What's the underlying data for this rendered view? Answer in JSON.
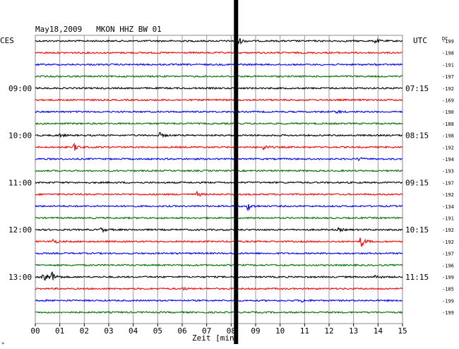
{
  "chart_data": {
    "type": "line",
    "title": "May18,2009   MKON HHZ BW 01",
    "left_axis_label": "CES",
    "right_axis_label": "UTC",
    "corner_label": "DC",
    "xlabel": "Zeit [min]",
    "xlim": [
      0,
      15
    ],
    "x_ticks": [
      "00",
      "01",
      "02",
      "03",
      "04",
      "05",
      "06",
      "07",
      "08",
      "09",
      "10",
      "11",
      "12",
      "13",
      "14",
      "15"
    ],
    "grid": true,
    "left_time_labels": [
      {
        "trace": 4,
        "text": "09:00"
      },
      {
        "trace": 8,
        "text": "10:00"
      },
      {
        "trace": 12,
        "text": "11:00"
      },
      {
        "trace": 16,
        "text": "12:00"
      },
      {
        "trace": 20,
        "text": "13:00"
      }
    ],
    "right_time_labels": [
      {
        "trace": 4,
        "text": "07:15"
      },
      {
        "trace": 8,
        "text": "08:15"
      },
      {
        "trace": 12,
        "text": "09:15"
      },
      {
        "trace": 16,
        "text": "10:15"
      },
      {
        "trace": 20,
        "text": "11:15"
      }
    ],
    "trace_colors": [
      "#000000",
      "#ff0000",
      "#0000ff",
      "#007000"
    ],
    "series": [
      {
        "offset": "-199",
        "events": [
          {
            "t": 8.3,
            "a": 5
          },
          {
            "t": 13.9,
            "a": 3
          }
        ]
      },
      {
        "offset": "-198",
        "events": []
      },
      {
        "offset": "-191",
        "events": [
          {
            "t": 8.2,
            "a": 2
          }
        ]
      },
      {
        "offset": "-197",
        "events": []
      },
      {
        "offset": "-192",
        "events": []
      },
      {
        "offset": "-169",
        "events": []
      },
      {
        "offset": "-190",
        "events": [
          {
            "t": 12.3,
            "a": 2
          }
        ]
      },
      {
        "offset": "-188",
        "events": []
      },
      {
        "offset": "-198",
        "events": [
          {
            "t": 1.0,
            "a": 2
          },
          {
            "t": 5.1,
            "a": 3
          }
        ]
      },
      {
        "offset": "-192",
        "events": [
          {
            "t": 1.6,
            "a": 5
          },
          {
            "t": 9.3,
            "a": 4
          }
        ]
      },
      {
        "offset": "-194",
        "events": [
          {
            "t": 13.2,
            "a": 2
          }
        ]
      },
      {
        "offset": "-193",
        "events": []
      },
      {
        "offset": "-197",
        "events": []
      },
      {
        "offset": "-192",
        "events": [
          {
            "t": 6.6,
            "a": 3
          }
        ]
      },
      {
        "offset": "-134",
        "events": [
          {
            "t": 8.7,
            "a": 5
          }
        ]
      },
      {
        "offset": "-191",
        "events": []
      },
      {
        "offset": "-192",
        "events": [
          {
            "t": 2.7,
            "a": 3
          },
          {
            "t": 12.4,
            "a": 2
          }
        ]
      },
      {
        "offset": "-192",
        "events": [
          {
            "t": 0.7,
            "a": 4
          },
          {
            "t": 13.3,
            "a": 8
          }
        ]
      },
      {
        "offset": "-197",
        "events": []
      },
      {
        "offset": "-196",
        "events": []
      },
      {
        "offset": "-199",
        "events": [
          {
            "t": 0.3,
            "a": 12
          },
          {
            "t": 0.7,
            "a": 6
          },
          {
            "t": 13.9,
            "a": 3
          }
        ]
      },
      {
        "offset": "-185",
        "events": [
          {
            "t": 6.0,
            "a": 2
          }
        ]
      },
      {
        "offset": "-199",
        "events": [
          {
            "t": 10.9,
            "a": 2
          }
        ]
      },
      {
        "offset": "-199",
        "events": []
      }
    ],
    "marker_minute": 8.2
  },
  "footer_mark": "»"
}
